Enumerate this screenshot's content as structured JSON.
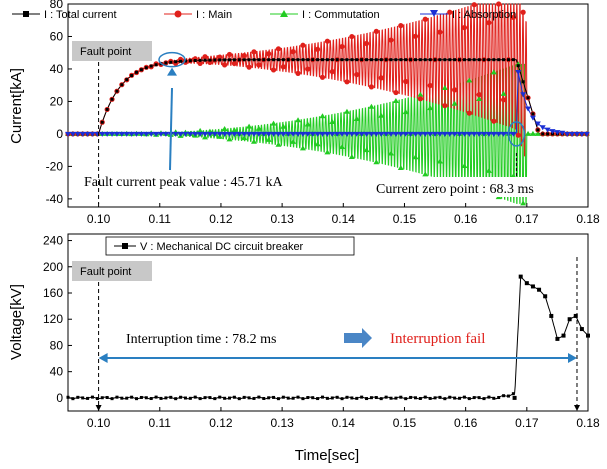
{
  "colors": {
    "total": "#000000",
    "main": "#e0201b",
    "commutation": "#22cc22",
    "absorption": "#1a2fd4",
    "voltage": "#000000",
    "annotation_arrow": "#2a7fc1",
    "interruption_fail": "#e0201b",
    "fault_box": "#c8c8c8"
  },
  "chart_data": [
    {
      "type": "line",
      "ylabel": "Current[kA]",
      "xlim": [
        0.095,
        0.18
      ],
      "ylim": [
        -45,
        80
      ],
      "x_ticks": [
        "0.10",
        "0.11",
        "0.12",
        "0.13",
        "0.14",
        "0.15",
        "0.16",
        "0.17",
        "0.18"
      ],
      "y_ticks": [
        "-40",
        "-20",
        "0",
        "20",
        "40",
        "60",
        "80"
      ],
      "legend": [
        {
          "key": "total",
          "name": "I  : Total current",
          "sub": "t"
        },
        {
          "key": "main",
          "name": "I  : Main",
          "sub": "m"
        },
        {
          "key": "commutation",
          "name": "I  : Commutation",
          "sub": "c"
        },
        {
          "key": "absorption",
          "name": "I  : Absorption",
          "sub": "a"
        }
      ],
      "series": [
        {
          "key": "total",
          "description": "rises from 0 at 0.10 s to ~45.7 kA, flat until 0.168 s, then collapses to 0 by ~0.172 s"
        },
        {
          "key": "main",
          "description": "follows total current, then oscillates with growing amplitude up to ~80 kA around 0.168 s"
        },
        {
          "key": "commutation",
          "description": "oscillation with growing amplitude around 0 up to ~±45 kA at 0.168 s"
        },
        {
          "key": "absorption",
          "description": "0 until ~0.168 s, spikes to ~45 kA and decays to 0 by ~0.175 s"
        }
      ],
      "annotations": {
        "fault_point": "Fault point",
        "fault_x": 0.1,
        "peak_label": "Fault current peak value : 45.71 kA",
        "peak_x": 0.112,
        "peak_y": 45.71,
        "zero_label": "Current zero point : 68.3 ms",
        "zero_x": 0.1683
      }
    },
    {
      "type": "line",
      "xlabel": "Time[sec]",
      "ylabel": "Voltage[kV]",
      "xlim": [
        0.095,
        0.18
      ],
      "ylim": [
        -20,
        250
      ],
      "x_ticks": [
        "0.10",
        "0.11",
        "0.12",
        "0.13",
        "0.14",
        "0.15",
        "0.16",
        "0.17",
        "0.18"
      ],
      "y_ticks": [
        "0",
        "40",
        "80",
        "120",
        "160",
        "200",
        "240"
      ],
      "legend": [
        {
          "key": "voltage",
          "name": "V : Mechanical DC circuit breaker"
        }
      ],
      "series": [
        {
          "key": "voltage",
          "x": [
            0.168,
            0.169,
            0.17,
            0.171,
            0.172,
            0.173,
            0.174,
            0.175,
            0.176,
            0.177,
            0.178,
            0.179,
            0.18
          ],
          "y": [
            0,
            185,
            175,
            170,
            165,
            155,
            125,
            90,
            95,
            120,
            125,
            105,
            95
          ]
        }
      ],
      "annotations": {
        "fault_point": "Fault point",
        "fault_x": 0.1,
        "interrupt_label": "Interruption time : 78.2 ms",
        "fail_label": "Interruption fail",
        "span_start": 0.1,
        "span_end": 0.1782
      }
    }
  ]
}
